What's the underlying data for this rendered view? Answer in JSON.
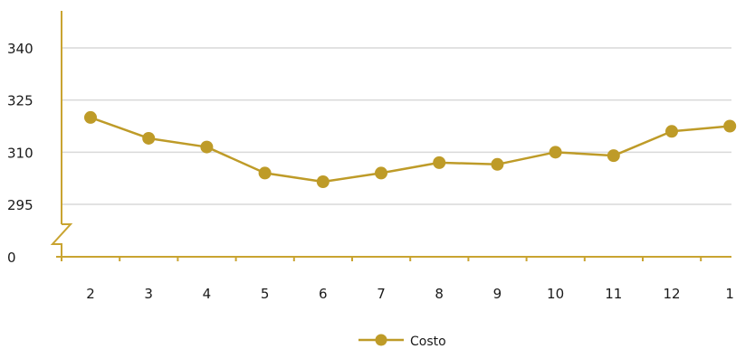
{
  "chart_data": {
    "type": "line",
    "categories": [
      "2",
      "3",
      "4",
      "5",
      "6",
      "7",
      "8",
      "9",
      "10",
      "11",
      "12",
      "1"
    ],
    "series": [
      {
        "name": "Costo",
        "values": [
          320,
          314,
          311.5,
          304,
          301.5,
          304,
          307,
          306.5,
          310,
          309,
          316,
          317.5
        ]
      }
    ],
    "y_ticks": [
      {
        "label": "340",
        "value": 340
      },
      {
        "label": "325",
        "value": 325
      },
      {
        "label": "310",
        "value": 310
      },
      {
        "label": "295",
        "value": 295
      },
      {
        "label": "0",
        "value": 0
      }
    ],
    "ylim": [
      0,
      344
    ],
    "axis_break": true,
    "grid": true,
    "legend_position": "bottom-center",
    "colors": {
      "series": "#BE9B28",
      "axis": "#C9A431",
      "grid": "#D9D9D9"
    }
  }
}
